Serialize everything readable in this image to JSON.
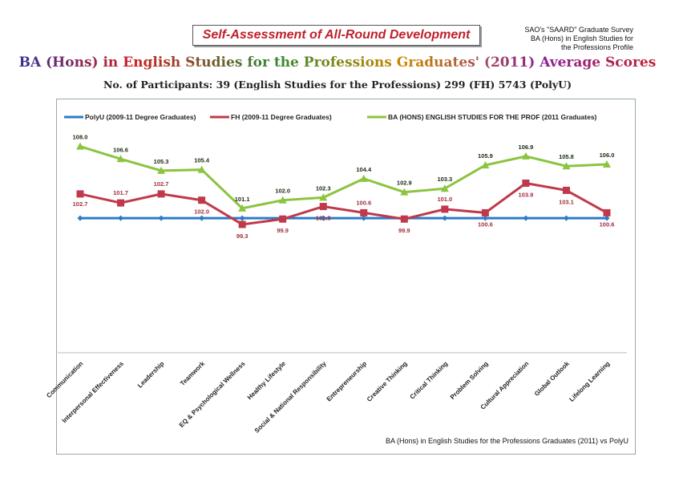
{
  "header": {
    "box_title": "Self-Assessment of All-Round Development",
    "survey_lines": [
      "SAO's \"SAARD\" Graduate Survey",
      "BA (Hons) in English Studies for",
      "the Professions Profile"
    ],
    "main_title": "BA (Hons) in English Studies for the Professions Graduates' (2011) Average Scores",
    "participants": "No. of Participants:  39 (English Studies for the Professions)   299 (FH)   5743 (PolyU)"
  },
  "footnote": "BA (Hons) in English Studies for the Professions Graduates (2011) vs PolyU",
  "chart_data": {
    "type": "line",
    "title": "BA (Hons) in English Studies for the Professions Graduates' (2011) Average Scores",
    "xlabel": "",
    "ylabel": "",
    "ylim": [
      85,
      108.5
    ],
    "legend_position": "top",
    "grid": false,
    "categories": [
      "Communication",
      "Interpersonal Effectiveness",
      "Leadership",
      "Teamwork",
      "EQ & Psychological Wellness",
      "Healthy Lifestyle",
      "Social & National Responsibility",
      "Entrepreneurship",
      "Creative Thinking",
      "Critical Thinking",
      "Problem Solving",
      "Cultural Appreciation",
      "Global Outlook",
      "Lifelong Learning"
    ],
    "series": [
      {
        "name": "PolyU (2009-11 Degree Graduates)",
        "color": "#2e7bc4",
        "marker": "diamond",
        "labels": false,
        "values": [
          100,
          100,
          100,
          100,
          100,
          100,
          100,
          100,
          100,
          100,
          100,
          100,
          100,
          100
        ]
      },
      {
        "name": "FH (2009-11 Degree Graduates)",
        "color": "#c0394a",
        "marker": "square",
        "labels": true,
        "label_color": "#a0303c",
        "values": [
          102.7,
          101.7,
          102.7,
          102.0,
          99.3,
          99.9,
          101.3,
          100.6,
          99.9,
          101.0,
          100.6,
          103.9,
          103.1,
          100.6
        ]
      },
      {
        "name": "BA (HONS) ENGLISH STUDIES FOR THE PROF (2011 Graduates)",
        "color": "#8bc43f",
        "marker": "triangle",
        "labels": true,
        "label_color": "#1a2a10",
        "values": [
          108.0,
          106.6,
          105.3,
          105.4,
          101.1,
          102.0,
          102.3,
          104.4,
          102.9,
          103.3,
          105.9,
          106.9,
          105.8,
          106.0
        ]
      }
    ]
  }
}
